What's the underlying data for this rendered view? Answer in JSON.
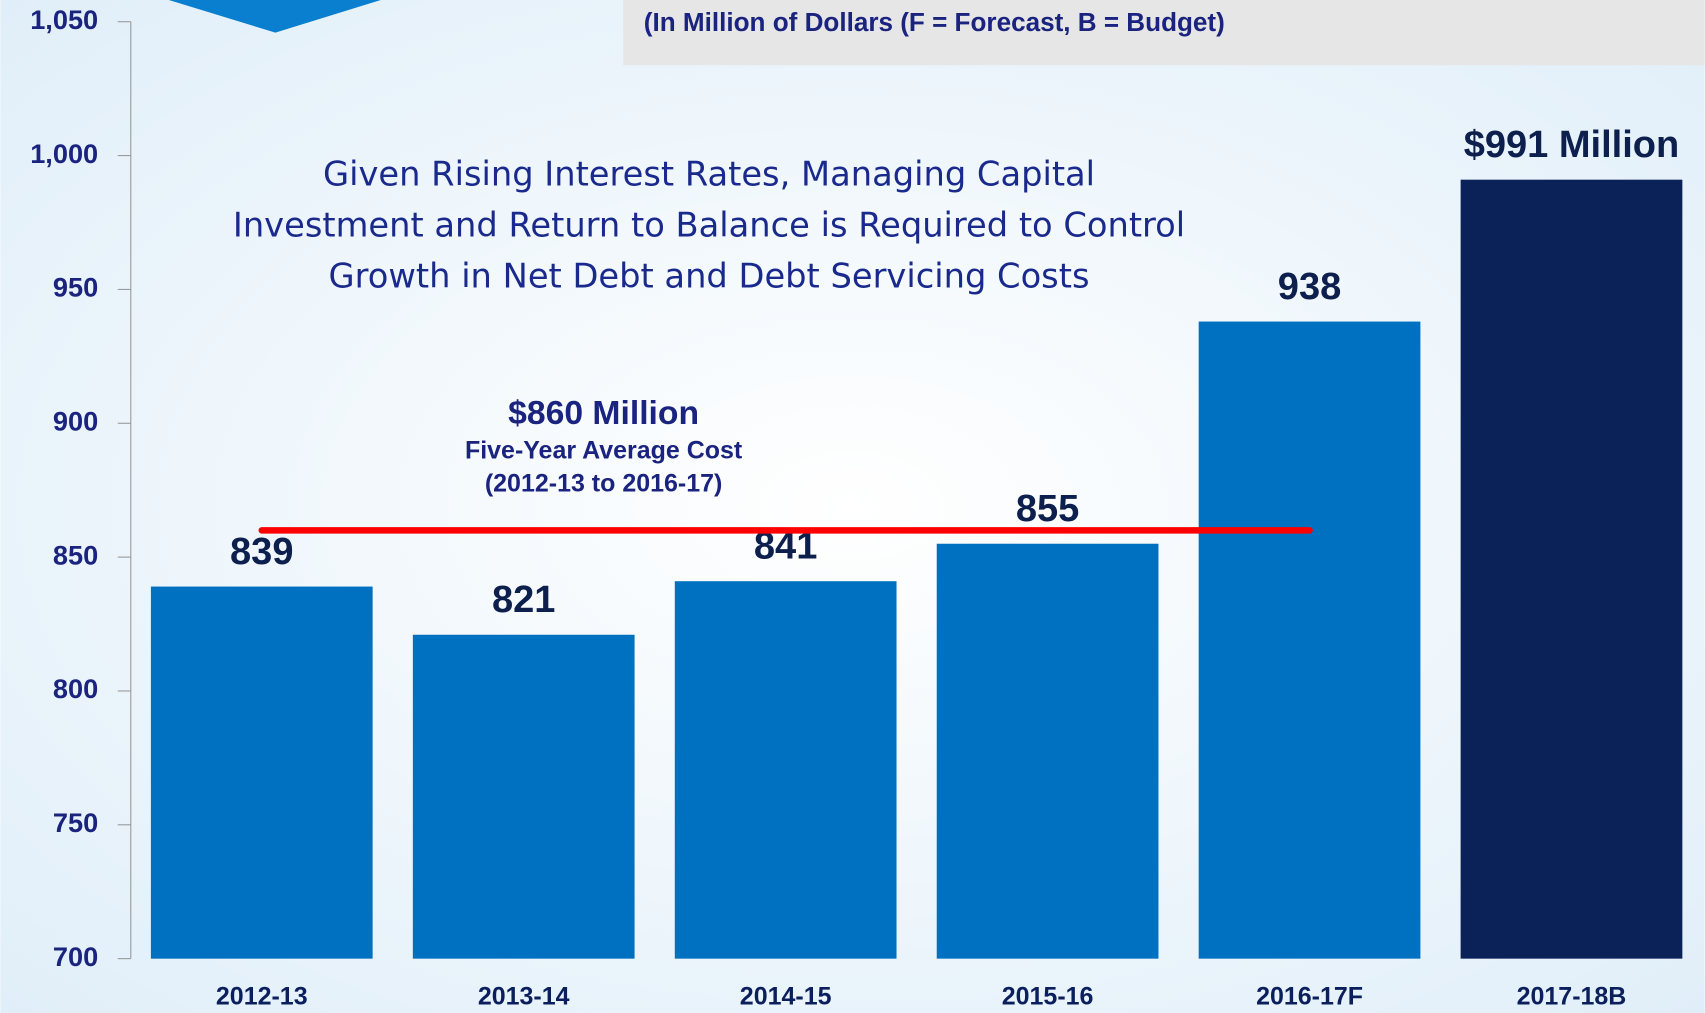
{
  "chart_data": {
    "type": "bar",
    "subtitle": "(In Million of Dollars (F = Forecast, B = Budget)",
    "categories": [
      "2012-13",
      "2013-14",
      "2014-15",
      "2015-16",
      "2016-17F",
      "2017-18B"
    ],
    "values": [
      839,
      821,
      841,
      855,
      938,
      991
    ],
    "value_labels": [
      "839",
      "821",
      "841",
      "855",
      "938",
      "$991 Million"
    ],
    "colors": [
      "#0070c0",
      "#0070c0",
      "#0070c0",
      "#0070c0",
      "#0070c0",
      "#0a2258"
    ],
    "ylim": [
      700,
      1050
    ],
    "yticks": [
      700,
      750,
      800,
      850,
      900,
      950,
      {
        "value": 1000,
        "label": "1,000"
      },
      {
        "value": 1050,
        "label": "1,050"
      }
    ],
    "annotation": [
      "Given Rising Interest Rates,  Managing Capital",
      "Investment and Return to Balance is Required to Control",
      "Growth in Net Debt and Debt Servicing Costs"
    ],
    "average_line": {
      "value": 860,
      "color": "#ff0000",
      "label": "$860 Million",
      "text": [
        "Five-Year Average Cost",
        "(2012-13 to 2016-17)"
      ]
    }
  }
}
